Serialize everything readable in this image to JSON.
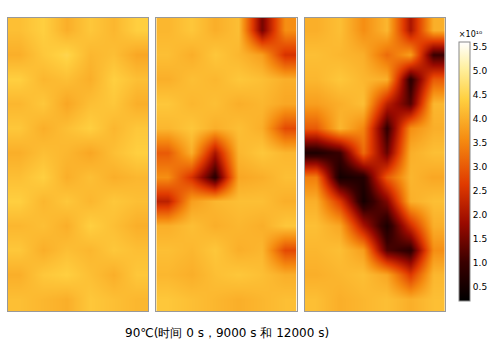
{
  "chart_data": {
    "type": "heatmap",
    "caption": "90℃(时间 0 s，9000 s 和 12000 s)",
    "tick_labels": false,
    "panels": [
      {
        "cells": [
          [
            4.2,
            4.4,
            4.0,
            4.3,
            4.1,
            4.4
          ],
          [
            4.0,
            4.3,
            4.5,
            4.1,
            4.2,
            3.9
          ],
          [
            4.4,
            4.1,
            4.2,
            4.0,
            4.4,
            4.2
          ],
          [
            4.1,
            4.3,
            3.9,
            4.2,
            4.3,
            4.0
          ],
          [
            4.3,
            4.0,
            4.2,
            4.4,
            4.1,
            4.3
          ],
          [
            4.0,
            4.2,
            4.1,
            3.9,
            4.2,
            4.4
          ],
          [
            4.2,
            4.4,
            4.0,
            4.2,
            4.0,
            4.1
          ],
          [
            4.4,
            4.1,
            4.3,
            4.1,
            4.3,
            4.2
          ],
          [
            4.1,
            4.2,
            4.0,
            4.4,
            4.2,
            4.0
          ],
          [
            4.3,
            4.0,
            4.2,
            4.1,
            4.3,
            4.2
          ],
          [
            4.0,
            4.3,
            4.4,
            4.2,
            4.0,
            4.3
          ],
          [
            4.2,
            4.1,
            4.0,
            4.3,
            4.2,
            4.1
          ]
        ]
      },
      {
        "cells": [
          [
            4.1,
            4.3,
            4.0,
            4.2,
            1.5,
            3.6
          ],
          [
            4.2,
            4.0,
            4.3,
            4.1,
            3.8,
            2.5
          ],
          [
            4.0,
            4.2,
            4.1,
            4.3,
            4.2,
            4.0
          ],
          [
            4.3,
            4.1,
            4.2,
            4.0,
            4.1,
            3.9
          ],
          [
            4.1,
            4.3,
            4.0,
            4.2,
            4.0,
            2.8
          ],
          [
            3.0,
            4.0,
            2.0,
            4.1,
            4.3,
            4.1
          ],
          [
            3.6,
            2.5,
            0.8,
            3.9,
            4.0,
            4.2
          ],
          [
            2.2,
            3.8,
            4.1,
            4.2,
            4.2,
            4.0
          ],
          [
            4.0,
            4.2,
            4.0,
            4.1,
            4.0,
            4.3
          ],
          [
            4.2,
            4.1,
            4.3,
            4.0,
            4.1,
            2.8
          ],
          [
            4.1,
            4.0,
            4.2,
            4.3,
            4.2,
            4.0
          ],
          [
            4.3,
            4.2,
            4.1,
            4.0,
            4.1,
            4.2
          ]
        ]
      },
      {
        "cells": [
          [
            4.0,
            4.2,
            3.6,
            4.1,
            2.0,
            4.0
          ],
          [
            4.2,
            4.1,
            4.0,
            3.2,
            3.8,
            1.0
          ],
          [
            4.1,
            4.3,
            4.1,
            4.0,
            0.8,
            3.0
          ],
          [
            3.8,
            4.0,
            4.2,
            2.2,
            1.2,
            4.1
          ],
          [
            3.0,
            4.1,
            3.5,
            0.9,
            3.6,
            4.0
          ],
          [
            0.6,
            1.0,
            3.2,
            1.4,
            4.0,
            4.2
          ],
          [
            3.4,
            0.5,
            0.7,
            3.0,
            4.1,
            3.9
          ],
          [
            4.0,
            2.6,
            0.5,
            1.6,
            4.0,
            4.2
          ],
          [
            4.2,
            3.9,
            2.0,
            0.6,
            2.4,
            4.0
          ],
          [
            4.1,
            4.2,
            3.8,
            1.2,
            0.8,
            3.6
          ],
          [
            4.0,
            4.1,
            4.2,
            3.9,
            2.6,
            4.1
          ],
          [
            4.2,
            4.0,
            4.1,
            4.2,
            4.0,
            4.2
          ]
        ]
      }
    ],
    "colorbar": {
      "title": "×10¹⁰",
      "range": [
        0.2,
        5.6
      ],
      "ticks": [
        0.5,
        {
          "value": 1,
          "label": "1.0"
        },
        1.5,
        {
          "value": 2,
          "label": "2.0"
        },
        2.5,
        {
          "value": 3,
          "label": "3.0"
        },
        3.5,
        {
          "value": 4,
          "label": "4.0"
        },
        4.5,
        {
          "value": 5,
          "label": "5.0"
        },
        5.5
      ]
    }
  }
}
